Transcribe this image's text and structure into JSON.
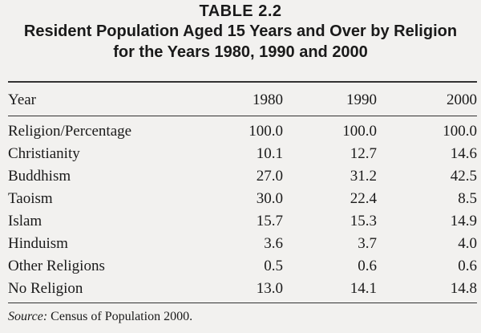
{
  "table_number": "TABLE 2.2",
  "title_line1": "Resident Population Aged 15 Years and Over by Religion",
  "title_line2": "for the Years 1980, 1990 and 2000",
  "header": {
    "label": "Year",
    "years": [
      "1980",
      "1990",
      "2000"
    ]
  },
  "rows": [
    {
      "label": "Religion/Percentage",
      "values": [
        "100.0",
        "100.0",
        "100.0"
      ]
    },
    {
      "label": "Christianity",
      "values": [
        "10.1",
        "12.7",
        "14.6"
      ]
    },
    {
      "label": "Buddhism",
      "values": [
        "27.0",
        "31.2",
        "42.5"
      ]
    },
    {
      "label": "Taoism",
      "values": [
        "30.0",
        "22.4",
        "8.5"
      ]
    },
    {
      "label": "Islam",
      "values": [
        "15.7",
        "15.3",
        "14.9"
      ]
    },
    {
      "label": "Hinduism",
      "values": [
        "3.6",
        "3.7",
        "4.0"
      ]
    },
    {
      "label": "Other Religions",
      "values": [
        "0.5",
        "0.6",
        "0.6"
      ]
    },
    {
      "label": "No Religion",
      "values": [
        "13.0",
        "14.1",
        "14.8"
      ]
    }
  ],
  "source": {
    "label": "Source:",
    "text": " Census of Population 2000."
  }
}
